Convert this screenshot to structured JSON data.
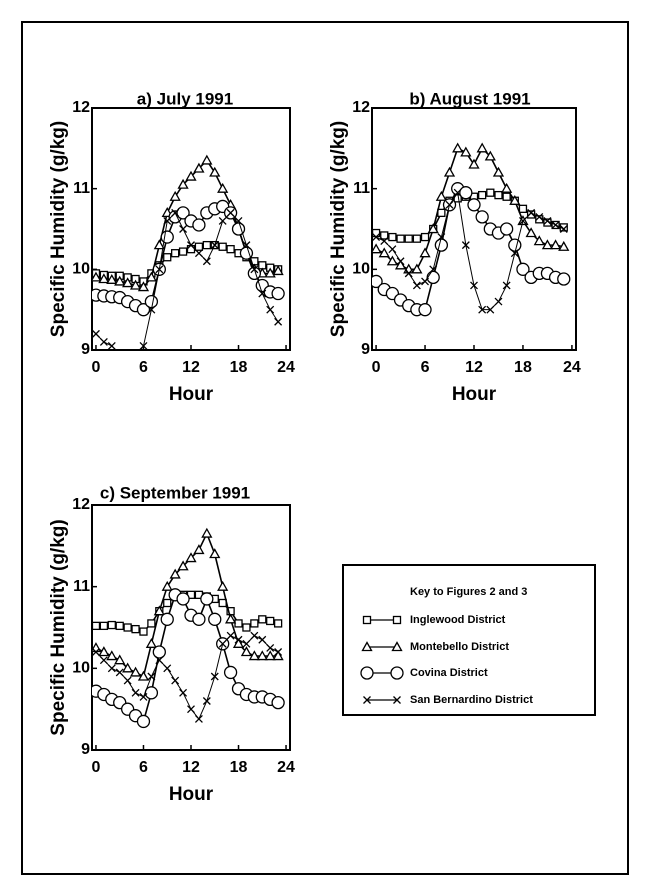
{
  "chart_data": [
    {
      "type": "line",
      "title": "a) July 1991",
      "ylabel": "Specific Humidity (g/kg)",
      "xlabel": "Hour",
      "x": [
        0,
        1,
        2,
        3,
        4,
        5,
        6,
        7,
        8,
        9,
        10,
        11,
        12,
        13,
        14,
        15,
        16,
        17,
        18,
        19,
        20,
        21,
        22,
        23
      ],
      "xlim": [
        -0.5,
        24.5
      ],
      "xticks": [
        0,
        6,
        12,
        18,
        24
      ],
      "ylim": [
        9,
        12
      ],
      "yticks": [
        9,
        10,
        11,
        12
      ],
      "series": [
        {
          "name": "Inglewood District",
          "color": "#000000",
          "marker": "square",
          "values": [
            9.95,
            9.93,
            9.92,
            9.92,
            9.9,
            9.88,
            9.85,
            9.95,
            10.05,
            10.15,
            10.2,
            10.22,
            10.25,
            10.28,
            10.3,
            10.3,
            10.28,
            10.25,
            10.2,
            10.15,
            10.1,
            10.05,
            10.02,
            10.0
          ]
        },
        {
          "name": "Montebello District",
          "color": "#000000",
          "marker": "triangle",
          "values": [
            9.9,
            9.88,
            9.87,
            9.85,
            9.83,
            9.8,
            9.78,
            9.9,
            10.3,
            10.7,
            10.9,
            11.05,
            11.15,
            11.25,
            11.35,
            11.2,
            11.0,
            10.8,
            10.5,
            10.2,
            10.0,
            9.95,
            9.95,
            9.98
          ]
        },
        {
          "name": "Covina District",
          "color": "#000000",
          "marker": "circle",
          "values": [
            9.68,
            9.67,
            9.66,
            9.65,
            9.6,
            9.55,
            9.5,
            9.6,
            10.0,
            10.4,
            10.65,
            10.7,
            10.6,
            10.55,
            10.7,
            10.75,
            10.78,
            10.7,
            10.5,
            10.2,
            9.95,
            9.8,
            9.72,
            9.7
          ]
        },
        {
          "name": "San Bernardino District",
          "color": "#000000",
          "marker": "x",
          "values": [
            9.2,
            9.1,
            9.05,
            8.95,
            8.9,
            8.92,
            9.05,
            9.5,
            10.0,
            10.6,
            10.7,
            10.5,
            10.3,
            10.2,
            10.1,
            10.3,
            10.6,
            10.7,
            10.6,
            10.3,
            10.0,
            9.7,
            9.5,
            9.35
          ]
        }
      ]
    },
    {
      "type": "line",
      "title": "b) August 1991",
      "ylabel": "Specific Humidity (g/kg)",
      "xlabel": "Hour",
      "x": [
        0,
        1,
        2,
        3,
        4,
        5,
        6,
        7,
        8,
        9,
        10,
        11,
        12,
        13,
        14,
        15,
        16,
        17,
        18,
        19,
        20,
        21,
        22,
        23
      ],
      "xlim": [
        -0.5,
        24.5
      ],
      "xticks": [
        0,
        6,
        12,
        18,
        24
      ],
      "ylim": [
        9,
        12
      ],
      "yticks": [
        9,
        10,
        11,
        12
      ],
      "series": [
        {
          "name": "Inglewood District",
          "color": "#000000",
          "marker": "square",
          "values": [
            10.45,
            10.42,
            10.4,
            10.38,
            10.38,
            10.38,
            10.4,
            10.5,
            10.7,
            10.85,
            10.88,
            10.9,
            10.9,
            10.92,
            10.95,
            10.92,
            10.9,
            10.85,
            10.75,
            10.68,
            10.62,
            10.58,
            10.55,
            10.52
          ]
        },
        {
          "name": "Montebello District",
          "color": "#000000",
          "marker": "triangle",
          "values": [
            10.25,
            10.2,
            10.1,
            10.05,
            10.0,
            10.0,
            10.2,
            10.5,
            10.9,
            11.2,
            11.5,
            11.45,
            11.3,
            11.5,
            11.4,
            11.2,
            11.0,
            10.85,
            10.6,
            10.45,
            10.35,
            10.3,
            10.3,
            10.28
          ]
        },
        {
          "name": "Covina District",
          "color": "#000000",
          "marker": "circle",
          "values": [
            9.85,
            9.75,
            9.7,
            9.62,
            9.55,
            9.5,
            9.5,
            9.9,
            10.3,
            10.8,
            11.0,
            10.95,
            10.8,
            10.65,
            10.5,
            10.45,
            10.5,
            10.3,
            10.0,
            9.9,
            9.95,
            9.95,
            9.9,
            9.88
          ]
        },
        {
          "name": "San Bernardino District",
          "color": "#000000",
          "marker": "x",
          "values": [
            10.4,
            10.35,
            10.25,
            10.1,
            9.95,
            9.8,
            9.85,
            10.0,
            10.4,
            10.8,
            10.95,
            10.3,
            9.8,
            9.5,
            9.5,
            9.6,
            9.8,
            10.2,
            10.6,
            10.7,
            10.65,
            10.6,
            10.55,
            10.5
          ]
        }
      ]
    },
    {
      "type": "line",
      "title": "c) September 1991",
      "ylabel": "Specific Humidity (g/kg)",
      "xlabel": "Hour",
      "x": [
        0,
        1,
        2,
        3,
        4,
        5,
        6,
        7,
        8,
        9,
        10,
        11,
        12,
        13,
        14,
        15,
        16,
        17,
        18,
        19,
        20,
        21,
        22,
        23
      ],
      "xlim": [
        -0.5,
        24.5
      ],
      "xticks": [
        0,
        6,
        12,
        18,
        24
      ],
      "ylim": [
        9,
        12
      ],
      "yticks": [
        9,
        10,
        11,
        12
      ],
      "series": [
        {
          "name": "Inglewood District",
          "color": "#000000",
          "marker": "square",
          "values": [
            10.52,
            10.52,
            10.53,
            10.52,
            10.5,
            10.48,
            10.45,
            10.55,
            10.7,
            10.8,
            10.88,
            10.9,
            10.9,
            10.9,
            10.88,
            10.85,
            10.8,
            10.7,
            10.55,
            10.5,
            10.55,
            10.6,
            10.58,
            10.55
          ]
        },
        {
          "name": "Montebello District",
          "color": "#000000",
          "marker": "triangle",
          "values": [
            10.25,
            10.2,
            10.15,
            10.1,
            10.0,
            9.95,
            9.9,
            10.3,
            10.7,
            11.0,
            11.15,
            11.25,
            11.35,
            11.45,
            11.65,
            11.4,
            11.0,
            10.6,
            10.3,
            10.2,
            10.15,
            10.15,
            10.15,
            10.15
          ]
        },
        {
          "name": "Covina District",
          "color": "#000000",
          "marker": "circle",
          "values": [
            9.72,
            9.68,
            9.62,
            9.58,
            9.5,
            9.42,
            9.35,
            9.7,
            10.2,
            10.6,
            10.9,
            10.85,
            10.65,
            10.6,
            10.85,
            10.6,
            10.3,
            9.95,
            9.75,
            9.68,
            9.65,
            9.65,
            9.62,
            9.58
          ]
        },
        {
          "name": "San Bernardino District",
          "color": "#000000",
          "marker": "x",
          "values": [
            10.2,
            10.1,
            10.0,
            9.95,
            9.85,
            9.7,
            9.65,
            9.9,
            10.1,
            10.0,
            9.85,
            9.7,
            9.5,
            9.38,
            9.6,
            9.9,
            10.3,
            10.4,
            10.35,
            10.3,
            10.4,
            10.35,
            10.25,
            10.2
          ]
        }
      ]
    }
  ],
  "legend": {
    "title": "Key to Figures 2 and 3"
  }
}
